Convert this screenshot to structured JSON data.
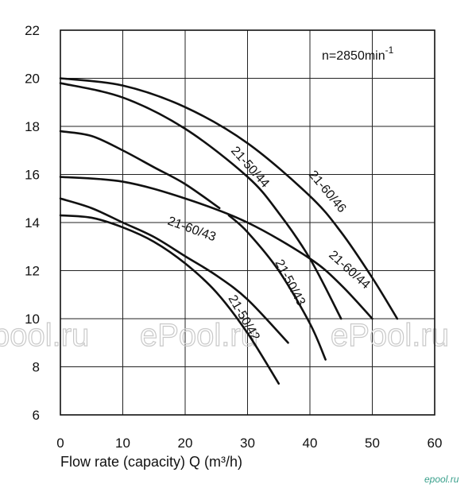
{
  "chart_data": {
    "type": "line",
    "title": "",
    "xlabel": "Flow rate (capacity) Q (m³/h)",
    "ylabel": "",
    "speed_label": {
      "text": "n=2850min",
      "superscript": "-1"
    },
    "xlim": [
      0,
      60
    ],
    "ylim": [
      6,
      22
    ],
    "x_ticks": [
      "0",
      "10",
      "20",
      "30",
      "40",
      "50",
      "60"
    ],
    "y_ticks": [
      "6",
      "8",
      "10",
      "12",
      "14",
      "16",
      "18",
      "20",
      "22"
    ],
    "grid": true,
    "series": [
      {
        "name": "21-50/42",
        "x": [
          0,
          5,
          10,
          15,
          20,
          25,
          30,
          35
        ],
        "y": [
          14.3,
          14.2,
          13.8,
          13.2,
          12.3,
          11.1,
          9.4,
          7.3
        ]
      },
      {
        "name": "21-60/43",
        "x": [
          0,
          5,
          10,
          15,
          20,
          25,
          30,
          36.5
        ],
        "y": [
          15.0,
          14.6,
          14.0,
          13.4,
          12.6,
          11.8,
          10.8,
          9.0
        ]
      },
      {
        "name": "21-50/43",
        "x": [
          0,
          5,
          10,
          15,
          20,
          25.5
        ],
        "y": [
          17.8,
          17.6,
          17.0,
          16.3,
          15.6,
          14.6
        ],
        "x2": [
          27,
          30,
          35,
          40,
          42.5
        ],
        "y2": [
          14.3,
          13.6,
          12.0,
          9.8,
          8.3
        ]
      },
      {
        "name": "21-60/44",
        "x": [
          0,
          10,
          20,
          30,
          40,
          45,
          50
        ],
        "y": [
          15.9,
          15.7,
          15.0,
          14.0,
          12.5,
          11.4,
          10.0
        ]
      },
      {
        "name": "21-50/44",
        "x": [
          0,
          10,
          20,
          30,
          35,
          40,
          45
        ],
        "y": [
          19.8,
          19.2,
          17.9,
          15.9,
          14.4,
          12.5,
          10.0
        ]
      },
      {
        "name": "21-60/46",
        "x": [
          0,
          10,
          20,
          30,
          40,
          45,
          50,
          54
        ],
        "y": [
          20.0,
          19.7,
          18.8,
          17.3,
          15.1,
          13.6,
          11.7,
          10.0
        ]
      }
    ]
  },
  "watermarks": [
    "pool.ru",
    "ePool.ru",
    "ePool.ru"
  ],
  "corner_mark": "epool.ru"
}
